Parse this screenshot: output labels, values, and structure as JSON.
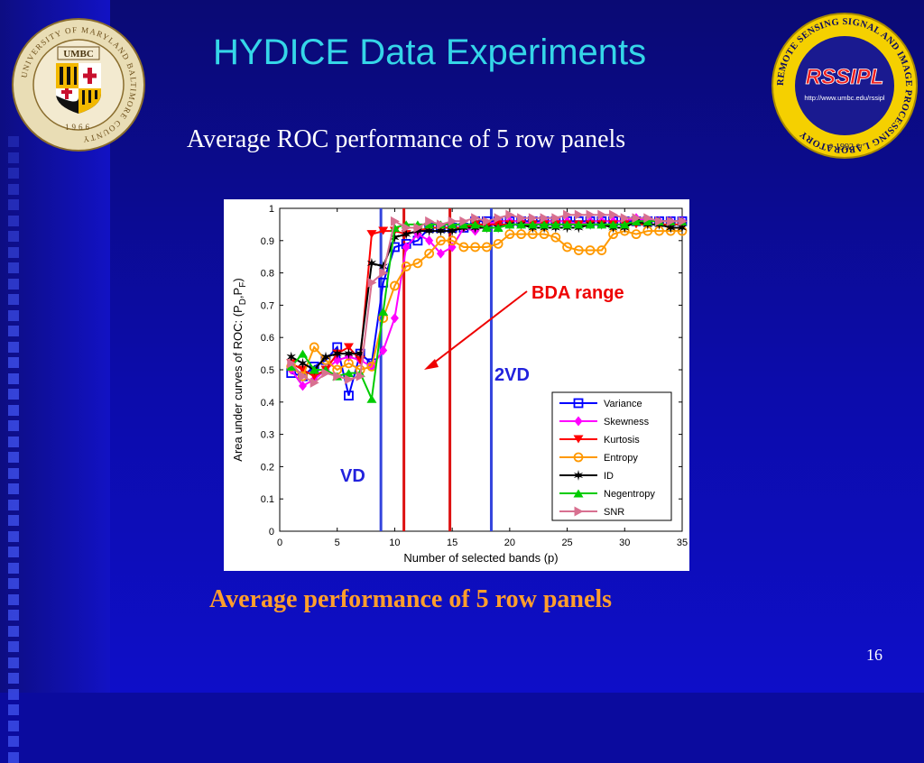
{
  "slide": {
    "title": "HYDICE Data Experiments",
    "subtitle": "Average ROC performance of 5 row panels",
    "caption": "Average performance of 5 row panels",
    "page_number": "16",
    "colors": {
      "title": "#35d6e8",
      "caption": "#ff9e2c",
      "background": "#0b0b9e"
    }
  },
  "logos": {
    "umbc": {
      "initials": "UMBC",
      "ring_text": "UNIVERSITY OF MARYLAND BALTIMORE COUNTY",
      "year": "1966"
    },
    "rssipl": {
      "name": "RSSIPL",
      "url": "http://www.umbc.edu/rssipl",
      "year": "* 1992 *",
      "ring_text": "REMOTE SENSING SIGNAL AND IMAGE PROCESSING LABORATORY"
    }
  },
  "chart_data": {
    "type": "line",
    "xlabel": "Number of selected bands (p)",
    "ylabel": "Area under curves of ROC: (P",
    "ylabel_sub1": "D",
    "ylabel_mid": ",P",
    "ylabel_sub2": "F",
    "ylabel_end": ")",
    "xlim": [
      0,
      35
    ],
    "ylim": [
      0,
      1
    ],
    "xticks": [
      0,
      5,
      10,
      15,
      20,
      25,
      30,
      35
    ],
    "yticks": [
      0,
      0.1,
      0.2,
      0.3,
      0.4,
      0.5,
      0.6,
      0.7,
      0.8,
      0.9,
      1
    ],
    "grid": false,
    "legend_position": "bottom-right",
    "x": [
      1,
      2,
      3,
      4,
      5,
      6,
      7,
      8,
      9,
      10,
      11,
      12,
      13,
      14,
      15,
      16,
      17,
      18,
      19,
      20,
      21,
      22,
      23,
      24,
      25,
      26,
      27,
      28,
      29,
      30,
      31,
      32,
      33,
      34,
      35
    ],
    "series": [
      {
        "name": "Variance",
        "color": "#0000ff",
        "marker": "square",
        "values": [
          0.49,
          0.48,
          0.51,
          0.53,
          0.57,
          0.42,
          0.55,
          0.52,
          0.77,
          0.88,
          0.89,
          0.9,
          0.94,
          0.94,
          0.94,
          0.94,
          0.96,
          0.96,
          0.96,
          0.96,
          0.96,
          0.96,
          0.96,
          0.96,
          0.96,
          0.96,
          0.96,
          0.96,
          0.96,
          0.96,
          0.96,
          0.96,
          0.96,
          0.96,
          0.96
        ]
      },
      {
        "name": "Skewness",
        "color": "#ff00ff",
        "marker": "diamond",
        "values": [
          0.5,
          0.45,
          0.47,
          0.5,
          0.53,
          0.54,
          0.53,
          0.51,
          0.56,
          0.66,
          0.88,
          0.92,
          0.9,
          0.86,
          0.88,
          0.94,
          0.93,
          0.95,
          0.96,
          0.96,
          0.96,
          0.95,
          0.96,
          0.96,
          0.96,
          0.95,
          0.96,
          0.96,
          0.96,
          0.96,
          0.97,
          0.96,
          0.96,
          0.96,
          0.96
        ]
      },
      {
        "name": "Kurtosis",
        "color": "#ff0000",
        "marker": "triangle-down",
        "values": [
          0.52,
          0.5,
          0.48,
          0.5,
          0.55,
          0.57,
          0.53,
          0.92,
          0.93,
          0.93,
          0.92,
          0.93,
          0.94,
          0.94,
          0.94,
          0.94,
          0.95,
          0.95,
          0.95,
          0.95,
          0.95,
          0.95,
          0.95,
          0.95,
          0.95,
          0.95,
          0.95,
          0.95,
          0.95,
          0.95,
          0.95,
          0.95,
          0.95,
          0.95,
          0.95
        ]
      },
      {
        "name": "Entropy",
        "color": "#ff9900",
        "marker": "circle",
        "values": [
          0.51,
          0.48,
          0.57,
          0.53,
          0.5,
          0.52,
          0.5,
          0.51,
          0.66,
          0.76,
          0.82,
          0.83,
          0.86,
          0.9,
          0.9,
          0.88,
          0.88,
          0.88,
          0.89,
          0.92,
          0.92,
          0.92,
          0.92,
          0.91,
          0.88,
          0.87,
          0.87,
          0.87,
          0.92,
          0.93,
          0.92,
          0.93,
          0.93,
          0.93,
          0.93
        ]
      },
      {
        "name": "ID",
        "color": "#000000",
        "marker": "star",
        "values": [
          0.54,
          0.52,
          0.5,
          0.54,
          0.55,
          0.55,
          0.55,
          0.83,
          0.82,
          0.91,
          0.92,
          0.93,
          0.93,
          0.93,
          0.93,
          0.94,
          0.94,
          0.94,
          0.94,
          0.95,
          0.95,
          0.94,
          0.94,
          0.94,
          0.94,
          0.94,
          0.95,
          0.95,
          0.94,
          0.94,
          0.96,
          0.95,
          0.95,
          0.94,
          0.94
        ]
      },
      {
        "name": "Negentropy",
        "color": "#00cc00",
        "marker": "triangle-up",
        "values": [
          0.51,
          0.55,
          0.5,
          0.5,
          0.48,
          0.49,
          0.49,
          0.41,
          0.68,
          0.94,
          0.95,
          0.95,
          0.95,
          0.95,
          0.95,
          0.95,
          0.95,
          0.94,
          0.94,
          0.95,
          0.95,
          0.95,
          0.95,
          0.95,
          0.95,
          0.95,
          0.95,
          0.95,
          0.95,
          0.95,
          0.96,
          0.96,
          0.96,
          0.96,
          0.96
        ]
      },
      {
        "name": "SNR",
        "color": "#d87090",
        "marker": "triangle-right",
        "values": [
          0.52,
          0.48,
          0.46,
          0.49,
          0.48,
          0.47,
          0.48,
          0.77,
          0.8,
          0.96,
          0.94,
          0.94,
          0.96,
          0.95,
          0.96,
          0.96,
          0.97,
          0.96,
          0.97,
          0.98,
          0.97,
          0.97,
          0.97,
          0.97,
          0.98,
          0.98,
          0.98,
          0.98,
          0.98,
          0.97,
          0.97,
          0.97,
          0.96,
          0.96,
          0.96
        ]
      }
    ],
    "vlines": [
      {
        "x": 8.8,
        "color": "#3344dd",
        "label": "VD"
      },
      {
        "x": 10.8,
        "color": "#dd1111"
      },
      {
        "x": 14.8,
        "color": "#dd1111"
      },
      {
        "x": 18.4,
        "color": "#3344dd",
        "label": "2VD"
      }
    ],
    "annotations": {
      "bda_label": "BDA range",
      "vd_label": "VD",
      "twovd_label": "2VD",
      "bda_color": "#ee0000",
      "vd_color": "#2222dd"
    }
  }
}
